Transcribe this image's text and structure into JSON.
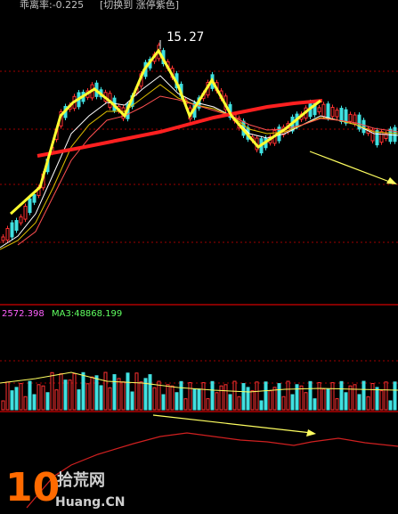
{
  "header": {
    "indicator": "乖离率:-0.225",
    "switch": "[切换到 涨停紫色]"
  },
  "price_panel": {
    "peak_label": "15.27"
  },
  "volume_panel": {
    "value": "2572.398",
    "ma": "MA3:48868.199"
  },
  "watermark": {
    "number": "10",
    "name": "拾荒网",
    "site": "Huang.CN"
  }
}
